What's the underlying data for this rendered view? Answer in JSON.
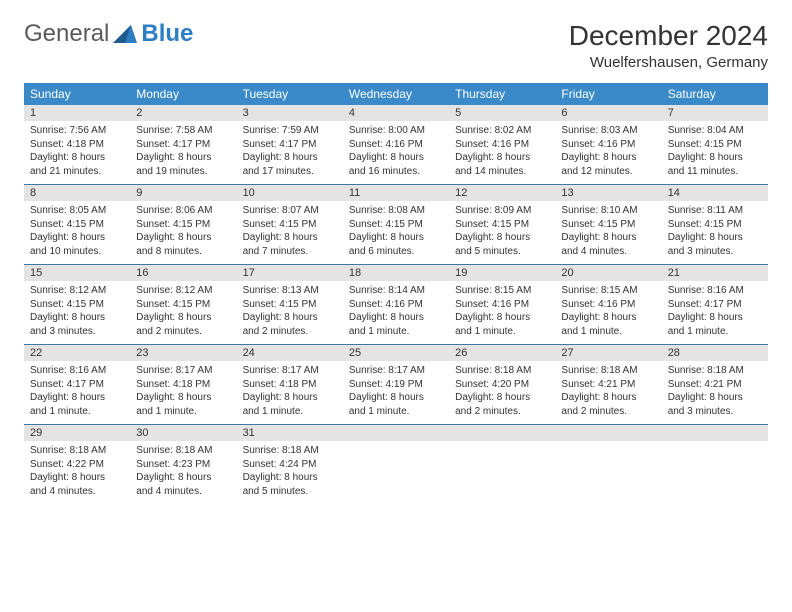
{
  "logo": {
    "text1": "General",
    "text2": "Blue"
  },
  "title": "December 2024",
  "location": "Wuelfershausen, Germany",
  "colors": {
    "header_bg": "#3a8ac9",
    "header_text": "#ffffff",
    "daynum_bg": "#e4e4e4",
    "row_border": "#3a7aa8",
    "logo_gray": "#5a5a5a",
    "logo_blue": "#2d7dc4"
  },
  "font": {
    "title_size": 28,
    "location_size": 15,
    "header_size": 12,
    "body_size": 10
  },
  "weekdays": [
    "Sunday",
    "Monday",
    "Tuesday",
    "Wednesday",
    "Thursday",
    "Friday",
    "Saturday"
  ],
  "weeks": [
    [
      {
        "n": "1",
        "sr": "Sunrise: 7:56 AM",
        "ss": "Sunset: 4:18 PM",
        "d1": "Daylight: 8 hours",
        "d2": "and 21 minutes."
      },
      {
        "n": "2",
        "sr": "Sunrise: 7:58 AM",
        "ss": "Sunset: 4:17 PM",
        "d1": "Daylight: 8 hours",
        "d2": "and 19 minutes."
      },
      {
        "n": "3",
        "sr": "Sunrise: 7:59 AM",
        "ss": "Sunset: 4:17 PM",
        "d1": "Daylight: 8 hours",
        "d2": "and 17 minutes."
      },
      {
        "n": "4",
        "sr": "Sunrise: 8:00 AM",
        "ss": "Sunset: 4:16 PM",
        "d1": "Daylight: 8 hours",
        "d2": "and 16 minutes."
      },
      {
        "n": "5",
        "sr": "Sunrise: 8:02 AM",
        "ss": "Sunset: 4:16 PM",
        "d1": "Daylight: 8 hours",
        "d2": "and 14 minutes."
      },
      {
        "n": "6",
        "sr": "Sunrise: 8:03 AM",
        "ss": "Sunset: 4:16 PM",
        "d1": "Daylight: 8 hours",
        "d2": "and 12 minutes."
      },
      {
        "n": "7",
        "sr": "Sunrise: 8:04 AM",
        "ss": "Sunset: 4:15 PM",
        "d1": "Daylight: 8 hours",
        "d2": "and 11 minutes."
      }
    ],
    [
      {
        "n": "8",
        "sr": "Sunrise: 8:05 AM",
        "ss": "Sunset: 4:15 PM",
        "d1": "Daylight: 8 hours",
        "d2": "and 10 minutes."
      },
      {
        "n": "9",
        "sr": "Sunrise: 8:06 AM",
        "ss": "Sunset: 4:15 PM",
        "d1": "Daylight: 8 hours",
        "d2": "and 8 minutes."
      },
      {
        "n": "10",
        "sr": "Sunrise: 8:07 AM",
        "ss": "Sunset: 4:15 PM",
        "d1": "Daylight: 8 hours",
        "d2": "and 7 minutes."
      },
      {
        "n": "11",
        "sr": "Sunrise: 8:08 AM",
        "ss": "Sunset: 4:15 PM",
        "d1": "Daylight: 8 hours",
        "d2": "and 6 minutes."
      },
      {
        "n": "12",
        "sr": "Sunrise: 8:09 AM",
        "ss": "Sunset: 4:15 PM",
        "d1": "Daylight: 8 hours",
        "d2": "and 5 minutes."
      },
      {
        "n": "13",
        "sr": "Sunrise: 8:10 AM",
        "ss": "Sunset: 4:15 PM",
        "d1": "Daylight: 8 hours",
        "d2": "and 4 minutes."
      },
      {
        "n": "14",
        "sr": "Sunrise: 8:11 AM",
        "ss": "Sunset: 4:15 PM",
        "d1": "Daylight: 8 hours",
        "d2": "and 3 minutes."
      }
    ],
    [
      {
        "n": "15",
        "sr": "Sunrise: 8:12 AM",
        "ss": "Sunset: 4:15 PM",
        "d1": "Daylight: 8 hours",
        "d2": "and 3 minutes."
      },
      {
        "n": "16",
        "sr": "Sunrise: 8:12 AM",
        "ss": "Sunset: 4:15 PM",
        "d1": "Daylight: 8 hours",
        "d2": "and 2 minutes."
      },
      {
        "n": "17",
        "sr": "Sunrise: 8:13 AM",
        "ss": "Sunset: 4:15 PM",
        "d1": "Daylight: 8 hours",
        "d2": "and 2 minutes."
      },
      {
        "n": "18",
        "sr": "Sunrise: 8:14 AM",
        "ss": "Sunset: 4:16 PM",
        "d1": "Daylight: 8 hours",
        "d2": "and 1 minute."
      },
      {
        "n": "19",
        "sr": "Sunrise: 8:15 AM",
        "ss": "Sunset: 4:16 PM",
        "d1": "Daylight: 8 hours",
        "d2": "and 1 minute."
      },
      {
        "n": "20",
        "sr": "Sunrise: 8:15 AM",
        "ss": "Sunset: 4:16 PM",
        "d1": "Daylight: 8 hours",
        "d2": "and 1 minute."
      },
      {
        "n": "21",
        "sr": "Sunrise: 8:16 AM",
        "ss": "Sunset: 4:17 PM",
        "d1": "Daylight: 8 hours",
        "d2": "and 1 minute."
      }
    ],
    [
      {
        "n": "22",
        "sr": "Sunrise: 8:16 AM",
        "ss": "Sunset: 4:17 PM",
        "d1": "Daylight: 8 hours",
        "d2": "and 1 minute."
      },
      {
        "n": "23",
        "sr": "Sunrise: 8:17 AM",
        "ss": "Sunset: 4:18 PM",
        "d1": "Daylight: 8 hours",
        "d2": "and 1 minute."
      },
      {
        "n": "24",
        "sr": "Sunrise: 8:17 AM",
        "ss": "Sunset: 4:18 PM",
        "d1": "Daylight: 8 hours",
        "d2": "and 1 minute."
      },
      {
        "n": "25",
        "sr": "Sunrise: 8:17 AM",
        "ss": "Sunset: 4:19 PM",
        "d1": "Daylight: 8 hours",
        "d2": "and 1 minute."
      },
      {
        "n": "26",
        "sr": "Sunrise: 8:18 AM",
        "ss": "Sunset: 4:20 PM",
        "d1": "Daylight: 8 hours",
        "d2": "and 2 minutes."
      },
      {
        "n": "27",
        "sr": "Sunrise: 8:18 AM",
        "ss": "Sunset: 4:21 PM",
        "d1": "Daylight: 8 hours",
        "d2": "and 2 minutes."
      },
      {
        "n": "28",
        "sr": "Sunrise: 8:18 AM",
        "ss": "Sunset: 4:21 PM",
        "d1": "Daylight: 8 hours",
        "d2": "and 3 minutes."
      }
    ],
    [
      {
        "n": "29",
        "sr": "Sunrise: 8:18 AM",
        "ss": "Sunset: 4:22 PM",
        "d1": "Daylight: 8 hours",
        "d2": "and 4 minutes."
      },
      {
        "n": "30",
        "sr": "Sunrise: 8:18 AM",
        "ss": "Sunset: 4:23 PM",
        "d1": "Daylight: 8 hours",
        "d2": "and 4 minutes."
      },
      {
        "n": "31",
        "sr": "Sunrise: 8:18 AM",
        "ss": "Sunset: 4:24 PM",
        "d1": "Daylight: 8 hours",
        "d2": "and 5 minutes."
      },
      null,
      null,
      null,
      null
    ]
  ]
}
